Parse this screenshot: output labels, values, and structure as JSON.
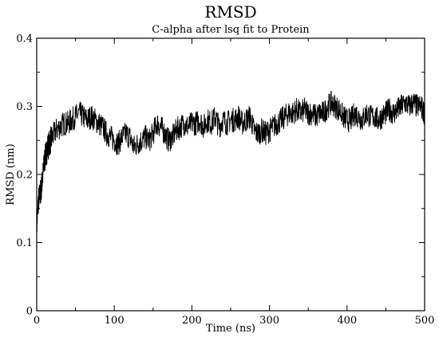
{
  "chart_data": {
    "type": "line",
    "title": "RMSD",
    "subtitle": "C-alpha after lsq fit to Protein",
    "xlabel": "Time (ns)",
    "ylabel": "RMSD (nm)",
    "xlim": [
      0,
      500
    ],
    "ylim": [
      0,
      0.4
    ],
    "xticks": [
      0,
      100,
      200,
      300,
      400,
      500
    ],
    "yticks": [
      0,
      0.1,
      0.2,
      0.3,
      0.4
    ],
    "grid": false,
    "line_color": "#000000",
    "series": [
      {
        "x": [
          0,
          2,
          4,
          6,
          8,
          10,
          12,
          14,
          16,
          18,
          20,
          25,
          30,
          35,
          40,
          45,
          50,
          55,
          60,
          65,
          70,
          75,
          80,
          85,
          90,
          95,
          100,
          105,
          110,
          115,
          120,
          125,
          130,
          135,
          140,
          145,
          150,
          155,
          160,
          165,
          170,
          175,
          180,
          185,
          190,
          195,
          200,
          205,
          210,
          215,
          220,
          225,
          230,
          235,
          240,
          245,
          250,
          255,
          260,
          265,
          270,
          275,
          280,
          285,
          290,
          295,
          300,
          305,
          310,
          315,
          320,
          325,
          330,
          335,
          340,
          345,
          350,
          355,
          360,
          365,
          370,
          375,
          380,
          385,
          390,
          395,
          400,
          405,
          410,
          415,
          420,
          425,
          430,
          435,
          440,
          445,
          450,
          455,
          460,
          465,
          470,
          475,
          480,
          485,
          490,
          495,
          500
        ],
        "y": [
          0.12,
          0.16,
          0.17,
          0.18,
          0.2,
          0.22,
          0.23,
          0.24,
          0.245,
          0.25,
          0.255,
          0.265,
          0.27,
          0.275,
          0.275,
          0.28,
          0.285,
          0.29,
          0.285,
          0.28,
          0.285,
          0.28,
          0.275,
          0.27,
          0.26,
          0.255,
          0.25,
          0.245,
          0.255,
          0.26,
          0.255,
          0.24,
          0.245,
          0.25,
          0.255,
          0.25,
          0.26,
          0.275,
          0.27,
          0.26,
          0.25,
          0.255,
          0.265,
          0.27,
          0.275,
          0.27,
          0.275,
          0.275,
          0.28,
          0.27,
          0.28,
          0.275,
          0.285,
          0.27,
          0.28,
          0.275,
          0.28,
          0.28,
          0.285,
          0.275,
          0.28,
          0.285,
          0.265,
          0.26,
          0.265,
          0.26,
          0.265,
          0.27,
          0.275,
          0.28,
          0.285,
          0.29,
          0.29,
          0.295,
          0.29,
          0.295,
          0.29,
          0.29,
          0.285,
          0.29,
          0.29,
          0.3,
          0.305,
          0.3,
          0.295,
          0.285,
          0.28,
          0.28,
          0.29,
          0.285,
          0.28,
          0.29,
          0.285,
          0.285,
          0.28,
          0.285,
          0.29,
          0.295,
          0.29,
          0.295,
          0.3,
          0.305,
          0.3,
          0.305,
          0.3,
          0.3,
          0.29
        ]
      }
    ]
  }
}
